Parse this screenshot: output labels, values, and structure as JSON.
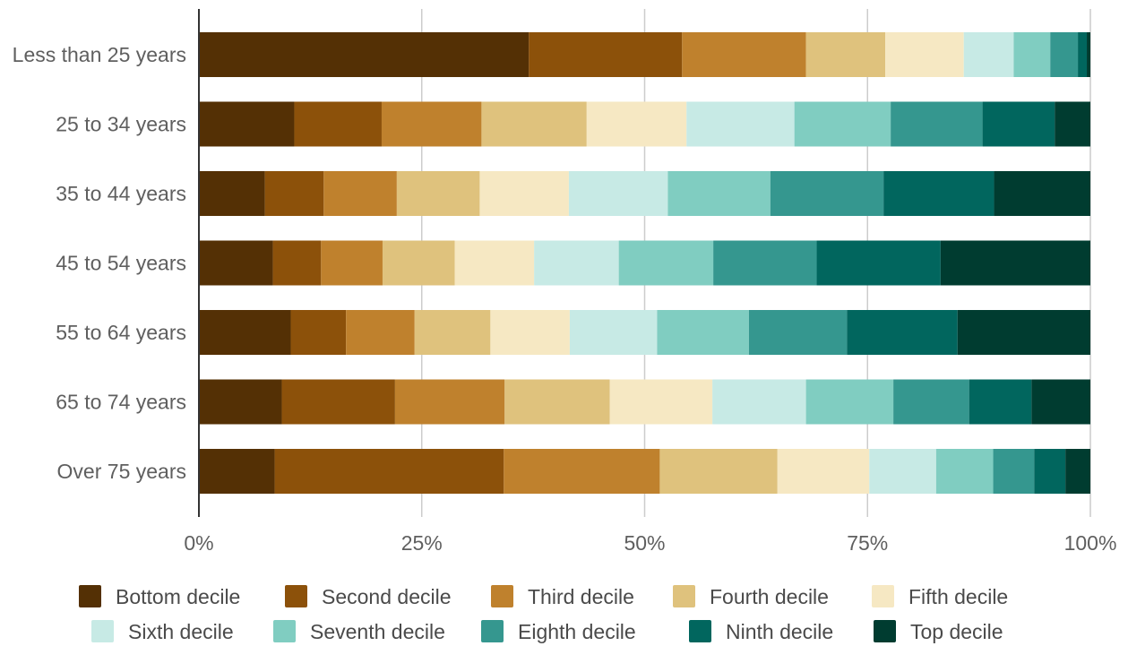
{
  "chart_data": {
    "type": "bar",
    "orientation": "horizontal",
    "stacked": true,
    "normalized": true,
    "categories": [
      "Less than 25 years",
      "25 to 34 years",
      "35 to 44 years",
      "45 to 54 years",
      "55 to 64 years",
      "65 to 74 years",
      "Over 75 years"
    ],
    "series": [
      {
        "name": "Bottom decile",
        "color": "#543005",
        "values": [
          37.0,
          10.7,
          7.4,
          8.3,
          10.3,
          9.3,
          8.5
        ]
      },
      {
        "name": "Second decile",
        "color": "#8c510a",
        "values": [
          17.2,
          9.8,
          6.6,
          5.4,
          6.2,
          12.7,
          25.7
        ]
      },
      {
        "name": "Third decile",
        "color": "#bf812d",
        "values": [
          13.9,
          11.2,
          8.2,
          6.9,
          7.7,
          12.3,
          17.5
        ]
      },
      {
        "name": "Fourth decile",
        "color": "#dfc27d",
        "values": [
          8.9,
          11.8,
          9.3,
          8.1,
          8.5,
          11.8,
          13.2
        ]
      },
      {
        "name": "Fifth decile",
        "color": "#f6e8c3",
        "values": [
          8.8,
          11.2,
          10.0,
          8.9,
          8.9,
          11.5,
          10.3
        ]
      },
      {
        "name": "Sixth decile",
        "color": "#c7eae5",
        "values": [
          5.6,
          12.1,
          11.1,
          9.5,
          9.8,
          10.5,
          7.5
        ]
      },
      {
        "name": "Seventh decile",
        "color": "#80cdc1",
        "values": [
          4.1,
          10.8,
          11.5,
          10.6,
          10.3,
          9.8,
          6.4
        ]
      },
      {
        "name": "Eighth decile",
        "color": "#35978f",
        "values": [
          3.1,
          10.3,
          12.7,
          11.6,
          11.0,
          8.5,
          4.6
        ]
      },
      {
        "name": "Ninth decile",
        "color": "#01665e",
        "values": [
          1.0,
          8.1,
          12.4,
          13.9,
          12.4,
          7.0,
          3.5
        ]
      },
      {
        "name": "Top decile",
        "color": "#003c30",
        "values": [
          0.4,
          4.0,
          10.8,
          16.8,
          14.9,
          6.6,
          2.8
        ]
      }
    ],
    "xticks": [
      "0%",
      "25%",
      "50%",
      "75%",
      "100%"
    ],
    "xlim": [
      0,
      100
    ],
    "title": "",
    "xlabel": "",
    "ylabel": "",
    "grid": true,
    "legend_position": "bottom"
  }
}
